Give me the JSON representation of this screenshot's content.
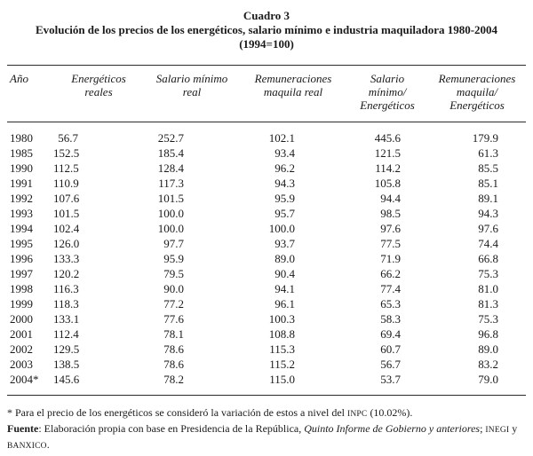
{
  "chart_data": {
    "type": "table",
    "title": "Cuadro 3",
    "subtitle": "Evolución de los precios de los energéticos, salario mínimo e industria maquiladora 1980-2004",
    "index_note": "(1994=100)",
    "columns": [
      "Año",
      "Energéticos\nreales",
      "Salario mínimo\nreal",
      "Remuneraciones\nmaquila real",
      "Salario\nmínimo/\nEnergéticos",
      "Remuneraciones\nmaquila/\nEnergéticos"
    ],
    "rows": [
      [
        "1980",
        "56.7",
        "252.7",
        "102.1",
        "445.6",
        "179.9"
      ],
      [
        "1985",
        "152.5",
        "185.4",
        "93.4",
        "121.5",
        "61.3"
      ],
      [
        "1990",
        "112.5",
        "128.4",
        "96.2",
        "114.2",
        "85.5"
      ],
      [
        "1991",
        "110.9",
        "117.3",
        "94.3",
        "105.8",
        "85.1"
      ],
      [
        "1992",
        "107.6",
        "101.5",
        "95.9",
        "94.4",
        "89.1"
      ],
      [
        "1993",
        "101.5",
        "100.0",
        "95.7",
        "98.5",
        "94.3"
      ],
      [
        "1994",
        "102.4",
        "100.0",
        "100.0",
        "97.6",
        "97.6"
      ],
      [
        "1995",
        "126.0",
        "97.7",
        "93.7",
        "77.5",
        "74.4"
      ],
      [
        "1996",
        "133.3",
        "95.9",
        "89.0",
        "71.9",
        "66.8"
      ],
      [
        "1997",
        "120.2",
        "79.5",
        "90.4",
        "66.2",
        "75.3"
      ],
      [
        "1998",
        "116.3",
        "90.0",
        "94.1",
        "77.4",
        "81.0"
      ],
      [
        "1999",
        "118.3",
        "77.2",
        "96.1",
        "65.3",
        "81.3"
      ],
      [
        "2000",
        "133.1",
        "77.6",
        "100.3",
        "58.3",
        "75.3"
      ],
      [
        "2001",
        "112.4",
        "78.1",
        "108.8",
        "69.4",
        "96.8"
      ],
      [
        "2002",
        "129.5",
        "78.6",
        "115.3",
        "60.7",
        "89.0"
      ],
      [
        "2003",
        "138.5",
        "78.6",
        "115.2",
        "56.7",
        "83.2"
      ],
      [
        "2004*",
        "145.6",
        "78.2",
        "115.0",
        "53.7",
        "79.0"
      ]
    ]
  },
  "footnotes": {
    "note_prefix": "* Para el precio de los energéticos se consideró la variación de estos a nivel del ",
    "note_inpc": "INPC",
    "note_suffix": " (10.02%).",
    "source_label": "Fuente",
    "source_text1": ": Elaboración propia con base en Presidencia de la República, ",
    "source_italic": "Quinto Informe de Gobierno y anteriores",
    "source_text2": "; ",
    "source_inegi": "INEGI",
    "source_text3": " y ",
    "source_banxico": "BANXICO",
    "source_text4": "."
  }
}
